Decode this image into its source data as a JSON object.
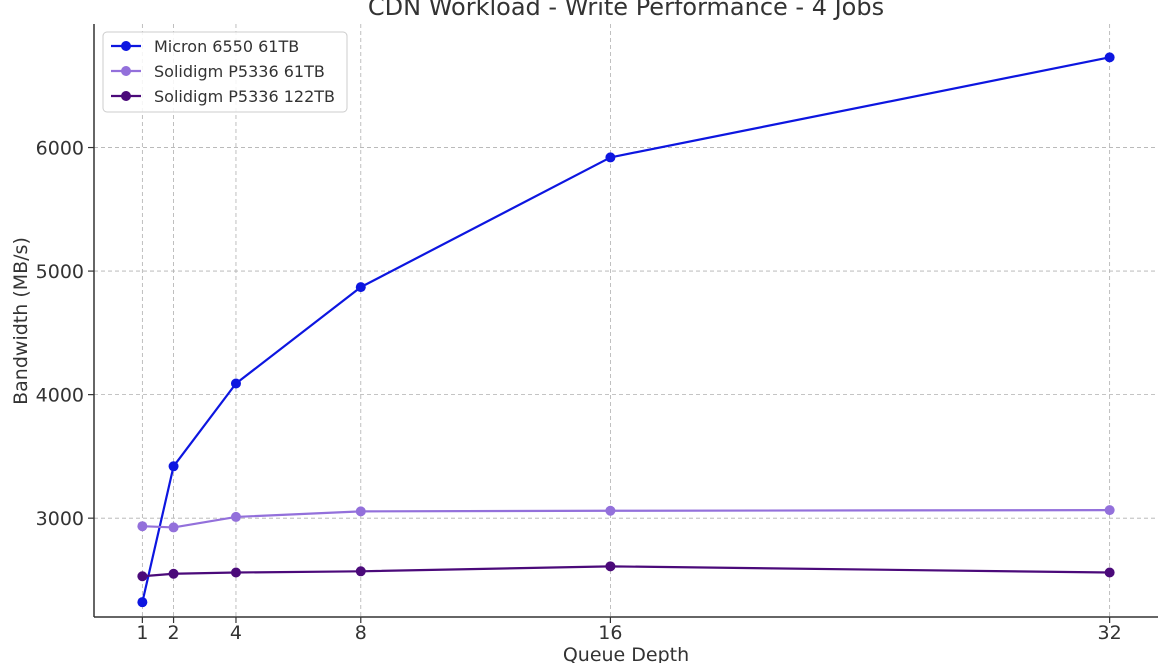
{
  "chart_data": {
    "type": "line",
    "title": "CDN Workload - Write Performance - 4 Jobs",
    "xlabel": "Queue Depth",
    "ylabel": "Bandwidth (MB/s)",
    "x": [
      1,
      2,
      4,
      8,
      16,
      32
    ],
    "x_ticks": [
      "1",
      "2",
      "4",
      "8",
      "16",
      "32"
    ],
    "y_ticks": [
      3000,
      4000,
      5000,
      6000
    ],
    "xlim": [
      -0.55,
      33.55
    ],
    "ylim": [
      2200,
      7000
    ],
    "grid": true,
    "legend_position": "top-left",
    "series": [
      {
        "name": "Micron 6550 61TB",
        "color": "#0d16e0",
        "values": [
          2320,
          3420,
          4090,
          4870,
          5920,
          6730
        ]
      },
      {
        "name": "Solidigm P5336 61TB",
        "color": "#9370db",
        "values": [
          2935,
          2925,
          3010,
          3055,
          3060,
          3065
        ]
      },
      {
        "name": "Solidigm P5336 122TB",
        "color": "#4b0a7a",
        "values": [
          2530,
          2550,
          2560,
          2570,
          2610,
          2560
        ]
      }
    ]
  }
}
